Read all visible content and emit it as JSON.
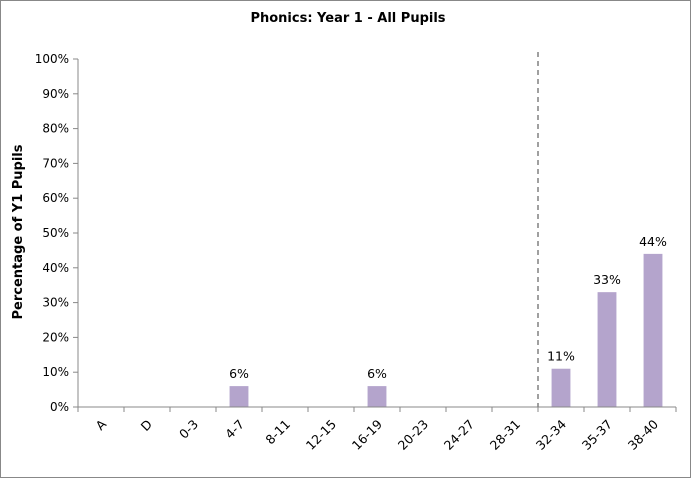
{
  "chart_data": {
    "type": "bar",
    "title": "Phonics: Year 1 - All Pupils",
    "xlabel": "",
    "ylabel": "Percentage of Y1 Pupils",
    "categories": [
      "A",
      "D",
      "0-3",
      "4-7",
      "8-11",
      "12-15",
      "16-19",
      "20-23",
      "24-27",
      "28-31",
      "32-34",
      "35-37",
      "38-40"
    ],
    "values": [
      0,
      0,
      0,
      6,
      0,
      0,
      6,
      0,
      0,
      0,
      11,
      33,
      44
    ],
    "data_labels": [
      "",
      "",
      "",
      "6%",
      "",
      "",
      "6%",
      "",
      "",
      "",
      "11%",
      "33%",
      "44%"
    ],
    "ylim": [
      0,
      100
    ],
    "yticks": [
      "0%",
      "10%",
      "20%",
      "30%",
      "40%",
      "50%",
      "60%",
      "70%",
      "80%",
      "90%",
      "100%"
    ],
    "threshold_marker": {
      "between": [
        "28-31",
        "32-34"
      ],
      "style": "dashed"
    },
    "grid": false,
    "bar_color": "#b4a4cc",
    "axis_color": "#888888",
    "threshold_color": "#808080"
  }
}
